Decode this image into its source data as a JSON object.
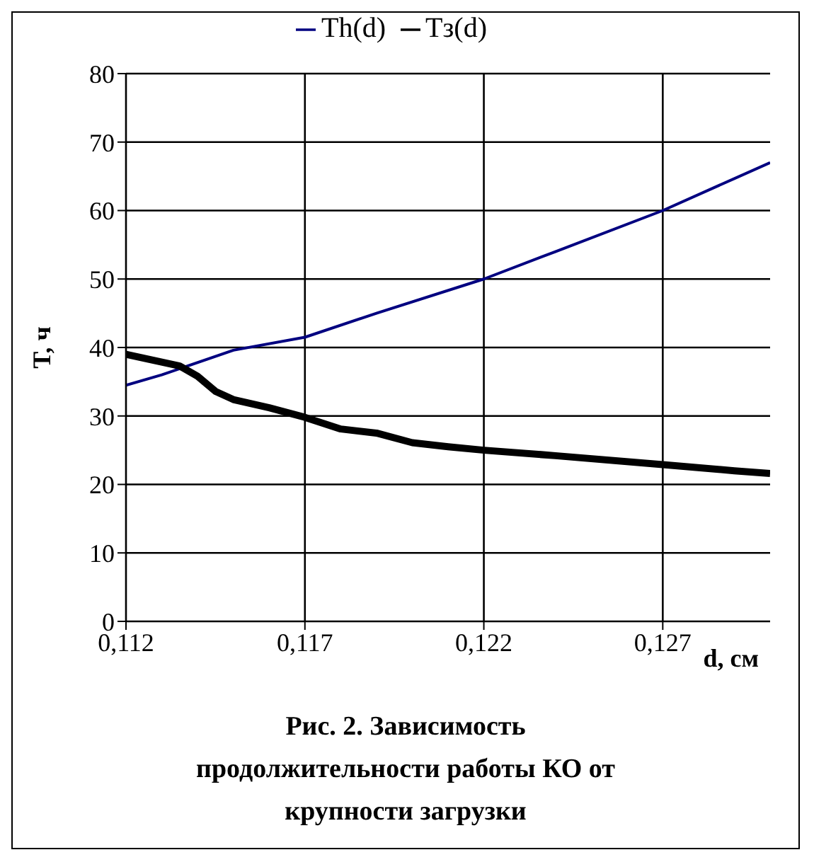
{
  "chart_data": {
    "type": "line",
    "xlabel": "d, см",
    "ylabel": "T, ч",
    "annotations": [
      "Рис. 2. Зависимость продолжительности работы КО от крупности загрузки"
    ],
    "xlim": [
      0.112,
      0.13
    ],
    "xticks": [
      {
        "value": 0.112,
        "label": "0,112"
      },
      {
        "value": 0.117,
        "label": "0,117"
      },
      {
        "value": 0.122,
        "label": "0,122"
      },
      {
        "value": 0.127,
        "label": "0,127"
      }
    ],
    "ylim": [
      0,
      80
    ],
    "yticks": [
      0,
      10,
      20,
      30,
      40,
      50,
      60,
      70,
      80
    ],
    "grid": true,
    "legend": "top",
    "marker": "none",
    "series": [
      {
        "name": "Th(d)",
        "color": "#000080",
        "x": [
          0.112,
          0.113,
          0.115,
          0.117,
          0.119,
          0.122,
          0.124,
          0.127,
          0.13
        ],
        "values": [
          34.5,
          36,
          39.6,
          41.5,
          45,
          50,
          54,
          60,
          67
        ]
      },
      {
        "name": "Tз(d)",
        "color": "#000000",
        "x": [
          0.112,
          0.1135,
          0.114,
          0.1145,
          0.115,
          0.116,
          0.117,
          0.118,
          0.119,
          0.12,
          0.121,
          0.122,
          0.124,
          0.127,
          0.129,
          0.13
        ],
        "values": [
          39,
          37.3,
          35.8,
          33.6,
          32.4,
          31.2,
          29.8,
          28.1,
          27.5,
          26.1,
          25.5,
          25,
          24.2,
          22.9,
          22,
          21.6
        ]
      }
    ]
  }
}
